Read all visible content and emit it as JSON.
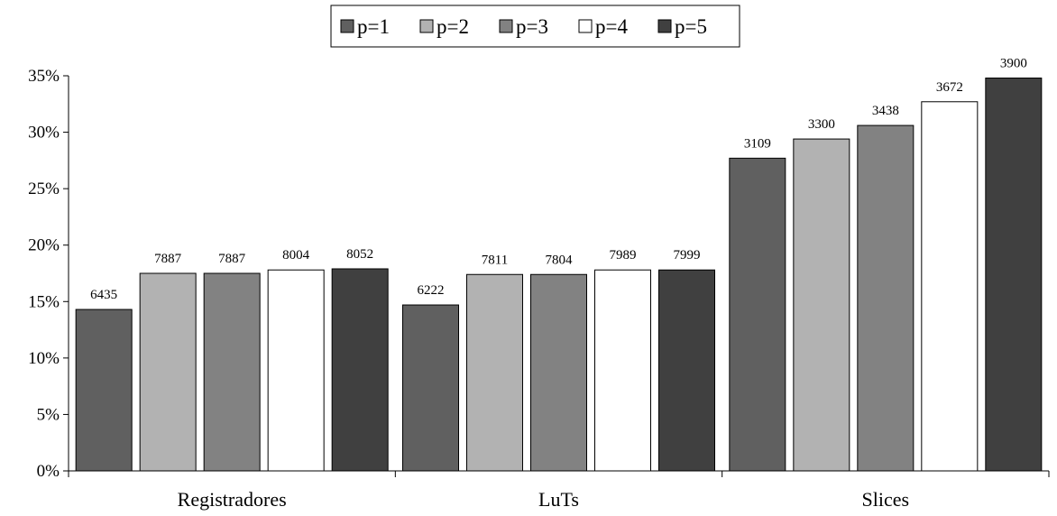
{
  "chart_data": {
    "type": "bar",
    "categories": [
      "Registradores",
      "LuTs",
      "Slices"
    ],
    "series": [
      {
        "name": "p=1",
        "color": "#606060",
        "values": [
          14.3,
          14.7,
          27.7
        ],
        "labels": [
          "6435",
          "6222",
          "3109"
        ]
      },
      {
        "name": "p=2",
        "color": "#b2b2b2",
        "values": [
          17.5,
          17.4,
          29.4
        ],
        "labels": [
          "7887",
          "7811",
          "3300"
        ]
      },
      {
        "name": "p=3",
        "color": "#828282",
        "values": [
          17.5,
          17.4,
          30.6
        ],
        "labels": [
          "7887",
          "7804",
          "3438"
        ]
      },
      {
        "name": "p=4",
        "color": "#ffffff",
        "values": [
          17.8,
          17.8,
          32.7
        ],
        "labels": [
          "8004",
          "7989",
          "3672"
        ]
      },
      {
        "name": "p=5",
        "color": "#404040",
        "values": [
          17.9,
          17.8,
          34.8
        ],
        "labels": [
          "8052",
          "7999",
          "3900"
        ]
      }
    ],
    "y_ticks": [
      "0%",
      "5%",
      "10%",
      "15%",
      "20%",
      "25%",
      "30%",
      "35%"
    ],
    "ylim": [
      0,
      35
    ],
    "legend_position": "top-center",
    "grid": false
  }
}
